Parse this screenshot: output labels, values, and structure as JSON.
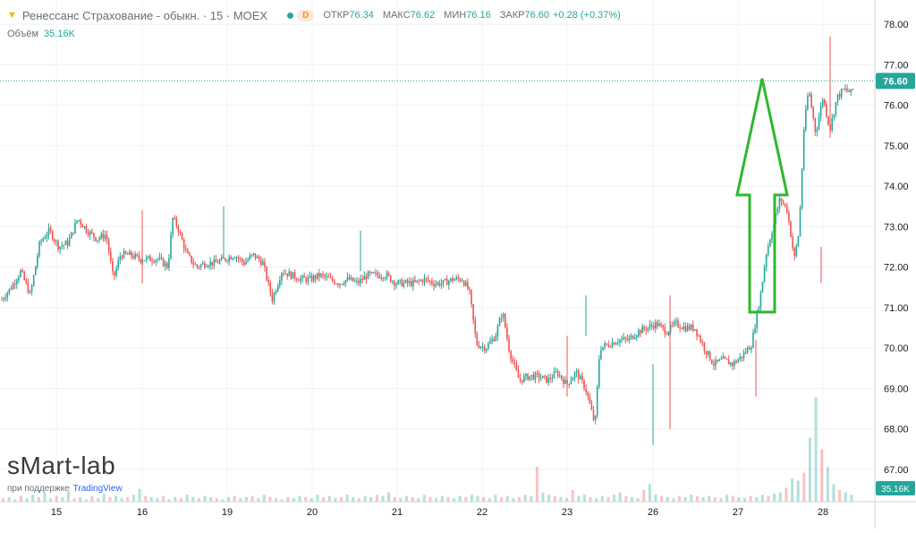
{
  "legend": {
    "title": "Ренессанс Страхование - обыкн. · 15 · MOEX",
    "badge": "D",
    "open_label": "ОТКР",
    "open_value": "76.34",
    "high_label": "МАКС",
    "high_value": "76.62",
    "low_label": "МИН",
    "low_value": "76.16",
    "close_label": "ЗАКР",
    "close_value": "76.60",
    "change": "+0.28 (+0.37%)"
  },
  "volume_legend": {
    "label": "Объём",
    "value": "35.16K"
  },
  "watermark": "sMart-lab",
  "support": {
    "prefix": "при поддержке",
    "brand": "TradingView"
  },
  "colors": {
    "up": "#26a69a",
    "down": "#ef5350",
    "arrow": "#2eb82e",
    "last_price_bg": "#26a69a",
    "volume_label_bg": "#26a69a"
  },
  "icons": [
    "chevron-icon",
    "status-dot-icon",
    "up-arrow-annotation"
  ],
  "chart_data": {
    "type": "candlestick",
    "interval": "15",
    "y_ticks": [
      67.0,
      68.0,
      69.0,
      70.0,
      71.0,
      72.0,
      73.0,
      74.0,
      75.0,
      76.0,
      77.0,
      78.0
    ],
    "ylim": [
      66.2,
      78.6
    ],
    "last_price": "76.60",
    "volume_label": "35.16K",
    "x_labels": [
      "15",
      "16",
      "19",
      "20",
      "21",
      "22",
      "23",
      "26",
      "27",
      "28"
    ],
    "grid": true,
    "annotation": "green-up-arrow",
    "price_path": [
      [
        0.0,
        71.2
      ],
      [
        0.2,
        71.5
      ],
      [
        0.4,
        71.9
      ],
      [
        0.6,
        71.3
      ],
      [
        0.8,
        72.6
      ],
      [
        1.0,
        72.9
      ],
      [
        1.2,
        72.5
      ],
      [
        1.4,
        72.6
      ],
      [
        1.6,
        73.2
      ],
      [
        1.8,
        72.9
      ],
      [
        2.0,
        72.7
      ],
      [
        2.2,
        72.8
      ],
      [
        2.35,
        71.7
      ],
      [
        2.5,
        72.3
      ],
      [
        2.7,
        72.3
      ],
      [
        2.9,
        72.2
      ],
      [
        3.1,
        72.2
      ],
      [
        3.3,
        72.2
      ],
      [
        3.5,
        72.0
      ],
      [
        3.6,
        73.2
      ],
      [
        3.7,
        73.0
      ],
      [
        3.9,
        72.3
      ],
      [
        4.1,
        72.0
      ],
      [
        4.3,
        72.1
      ],
      [
        4.5,
        72.1
      ],
      [
        4.7,
        72.2
      ],
      [
        4.9,
        72.3
      ],
      [
        5.1,
        72.1
      ],
      [
        5.3,
        72.3
      ],
      [
        5.5,
        72.1
      ],
      [
        5.7,
        71.2
      ],
      [
        5.9,
        71.9
      ],
      [
        6.1,
        71.8
      ],
      [
        6.3,
        71.7
      ],
      [
        6.5,
        71.7
      ],
      [
        6.7,
        71.8
      ],
      [
        6.9,
        71.7
      ],
      [
        7.1,
        71.6
      ],
      [
        7.3,
        71.7
      ],
      [
        7.5,
        71.6
      ],
      [
        7.7,
        71.8
      ],
      [
        7.9,
        71.8
      ],
      [
        8.1,
        71.8
      ],
      [
        8.3,
        71.6
      ],
      [
        8.5,
        71.6
      ],
      [
        8.7,
        71.6
      ],
      [
        8.9,
        71.7
      ],
      [
        9.1,
        71.6
      ],
      [
        9.3,
        71.6
      ],
      [
        9.5,
        71.7
      ],
      [
        9.7,
        71.7
      ],
      [
        9.85,
        71.4
      ],
      [
        10.0,
        70.1
      ],
      [
        10.2,
        70.0
      ],
      [
        10.4,
        70.3
      ],
      [
        10.55,
        70.9
      ],
      [
        10.7,
        69.9
      ],
      [
        10.9,
        69.2
      ],
      [
        11.1,
        69.3
      ],
      [
        11.3,
        69.3
      ],
      [
        11.5,
        69.2
      ],
      [
        11.7,
        69.4
      ],
      [
        11.9,
        69.1
      ],
      [
        12.1,
        69.4
      ],
      [
        12.3,
        69.0
      ],
      [
        12.5,
        68.1
      ],
      [
        12.6,
        70.0
      ],
      [
        12.8,
        70.1
      ],
      [
        13.0,
        70.2
      ],
      [
        13.2,
        70.2
      ],
      [
        13.4,
        70.4
      ],
      [
        13.6,
        70.5
      ],
      [
        13.8,
        70.6
      ],
      [
        14.0,
        70.4
      ],
      [
        14.2,
        70.6
      ],
      [
        14.4,
        70.5
      ],
      [
        14.6,
        70.5
      ],
      [
        14.8,
        70.0
      ],
      [
        15.0,
        69.6
      ],
      [
        15.2,
        69.7
      ],
      [
        15.4,
        69.6
      ],
      [
        15.6,
        69.8
      ],
      [
        15.8,
        70.1
      ],
      [
        16.0,
        71.4
      ],
      [
        16.1,
        72.3
      ],
      [
        16.25,
        73.0
      ],
      [
        16.4,
        73.7
      ],
      [
        16.55,
        73.4
      ],
      [
        16.7,
        72.2
      ],
      [
        16.8,
        72.9
      ],
      [
        16.9,
        75.4
      ],
      [
        17.0,
        76.4
      ],
      [
        17.15,
        75.3
      ],
      [
        17.3,
        76.2
      ],
      [
        17.45,
        75.4
      ],
      [
        17.6,
        76.2
      ],
      [
        17.75,
        76.4
      ],
      [
        17.9,
        76.3
      ],
      [
        18.0,
        76.6
      ]
    ],
    "volume_profile": [
      0.03,
      0.04,
      0.02,
      0.05,
      0.03,
      0.06,
      0.04,
      0.08,
      0.03,
      0.05,
      0.04,
      0.09,
      0.03,
      0.04,
      0.02,
      0.05,
      0.03,
      0.07,
      0.04,
      0.05,
      0.03,
      0.04,
      0.06,
      0.11,
      0.05,
      0.04,
      0.03,
      0.05,
      0.02,
      0.04,
      0.03,
      0.06,
      0.04,
      0.03,
      0.05,
      0.04,
      0.03,
      0.02,
      0.04,
      0.05,
      0.03,
      0.04,
      0.05,
      0.03,
      0.06,
      0.04,
      0.03,
      0.02,
      0.04,
      0.03,
      0.05,
      0.04,
      0.03,
      0.06,
      0.04,
      0.05,
      0.03,
      0.04,
      0.06,
      0.04,
      0.03,
      0.05,
      0.04,
      0.06,
      0.05,
      0.08,
      0.04,
      0.03,
      0.05,
      0.04,
      0.03,
      0.06,
      0.04,
      0.03,
      0.05,
      0.04,
      0.03,
      0.05,
      0.04,
      0.06,
      0.05,
      0.04,
      0.03,
      0.06,
      0.04,
      0.05,
      0.03,
      0.04,
      0.06,
      0.05,
      0.3,
      0.08,
      0.06,
      0.05,
      0.04,
      0.03,
      0.1,
      0.05,
      0.06,
      0.04,
      0.03,
      0.05,
      0.04,
      0.06,
      0.08,
      0.05,
      0.04,
      0.03,
      0.1,
      0.15,
      0.06,
      0.05,
      0.04,
      0.03,
      0.05,
      0.04,
      0.06,
      0.05,
      0.04,
      0.05,
      0.04,
      0.03,
      0.06,
      0.05,
      0.04,
      0.03,
      0.05,
      0.04,
      0.06,
      0.05,
      0.07,
      0.08,
      0.12,
      0.2,
      0.18,
      0.25,
      0.55,
      0.9,
      0.45,
      0.3,
      0.15,
      0.1,
      0.08,
      0.06
    ]
  }
}
